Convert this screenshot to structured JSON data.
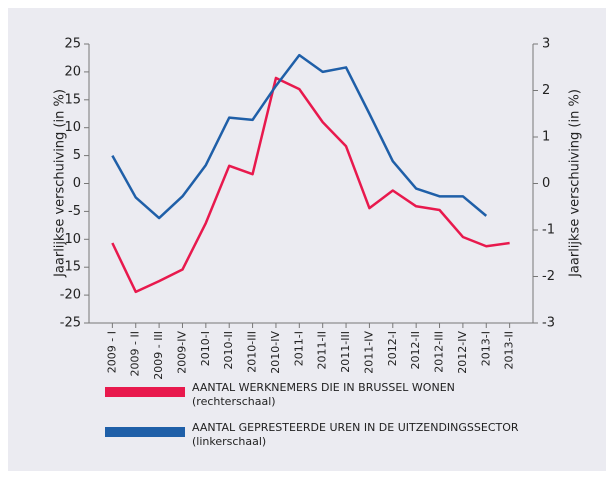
{
  "chart_data": {
    "type": "line",
    "y_label": "Jaarlijkse  verschuiving (in %)",
    "y2_label": "Jaarlijkse  verschuiving (in %)",
    "categories": [
      "2009 - I",
      "2009 - II",
      "2009 - III",
      "2009-IV",
      "2010-I",
      "2010-II",
      "2010-III",
      "2010-IV",
      "2011-I",
      "2011-II",
      "2011-III",
      "2011-IV",
      "2012-I",
      "2012-II",
      "2012-III",
      "2012-IV",
      "2013-I",
      "2013-II"
    ],
    "ylim": [
      -25,
      25
    ],
    "yticks": [
      -25,
      -20,
      -15,
      -10,
      -5,
      0,
      5,
      10,
      15,
      20,
      25
    ],
    "y2lim": [
      -3,
      3
    ],
    "y2ticks": [
      -3,
      -2,
      -1,
      0,
      1,
      2,
      3
    ],
    "series": [
      {
        "name": "AANTAL WERKNEMERS DIE IN BRUSSEL WONEN",
        "scale_note": "(rechterschaal)",
        "color": "#e8194d",
        "axis": "y2",
        "values": [
          -1.28,
          -2.33,
          -2.1,
          -1.85,
          -0.85,
          0.38,
          0.2,
          2.27,
          2.03,
          1.32,
          0.8,
          -0.53,
          -0.15,
          -0.49,
          -0.57,
          -1.15,
          -1.35,
          -1.28
        ]
      },
      {
        "name": "AANTAL GEPRESTEERDE UREN IN DE UITZENDINGSSECTOR",
        "scale_note": "(linkerschaal)",
        "color": "#1f5fa8",
        "axis": "y",
        "values": [
          5,
          -2.5,
          -6.2,
          -2.3,
          3.3,
          11.8,
          11.4,
          17.5,
          23,
          20,
          20.8,
          12.5,
          4,
          -0.9,
          -2.3,
          -2.3,
          -5.8,
          null
        ]
      }
    ]
  }
}
